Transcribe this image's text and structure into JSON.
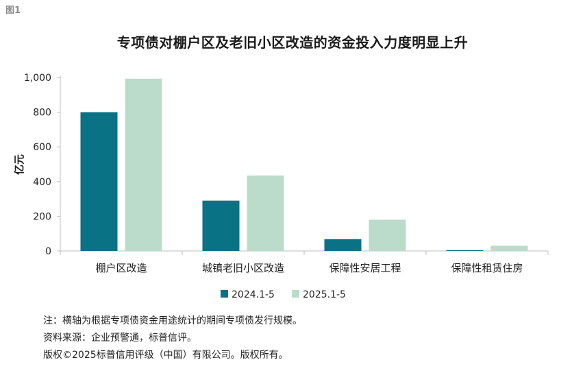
{
  "figure_label": "图1",
  "notes": [
    "注：横轴为根据专项债资金用途统计的期间专项债发行规模。",
    "资料来源：企业预警通，标普信评。",
    "版权©2025标普信用评级（中国）有限公司。版权所有。"
  ],
  "chart_data": {
    "type": "bar",
    "title": "专项债对棚户区及老旧小区改造的资金投入力度明显上升",
    "ylabel": "亿元",
    "xlabel": "",
    "ylim": [
      0,
      1000
    ],
    "yticks": [
      "0",
      "200",
      "400",
      "600",
      "800",
      "1,000"
    ],
    "ytick_values": [
      0,
      200,
      400,
      600,
      800,
      1000
    ],
    "categories": [
      "棚户区改造",
      "城镇老旧小区改造",
      "保障性安居工程",
      "保障性租赁住房"
    ],
    "series": [
      {
        "name": "2024.1-5",
        "color": "#0a7285",
        "values": [
          800,
          290,
          68,
          5
        ]
      },
      {
        "name": "2025.1-5",
        "color": "#bcdccb",
        "values": [
          993,
          435,
          180,
          30
        ]
      }
    ],
    "legend": "bottom-center",
    "grid": false
  }
}
